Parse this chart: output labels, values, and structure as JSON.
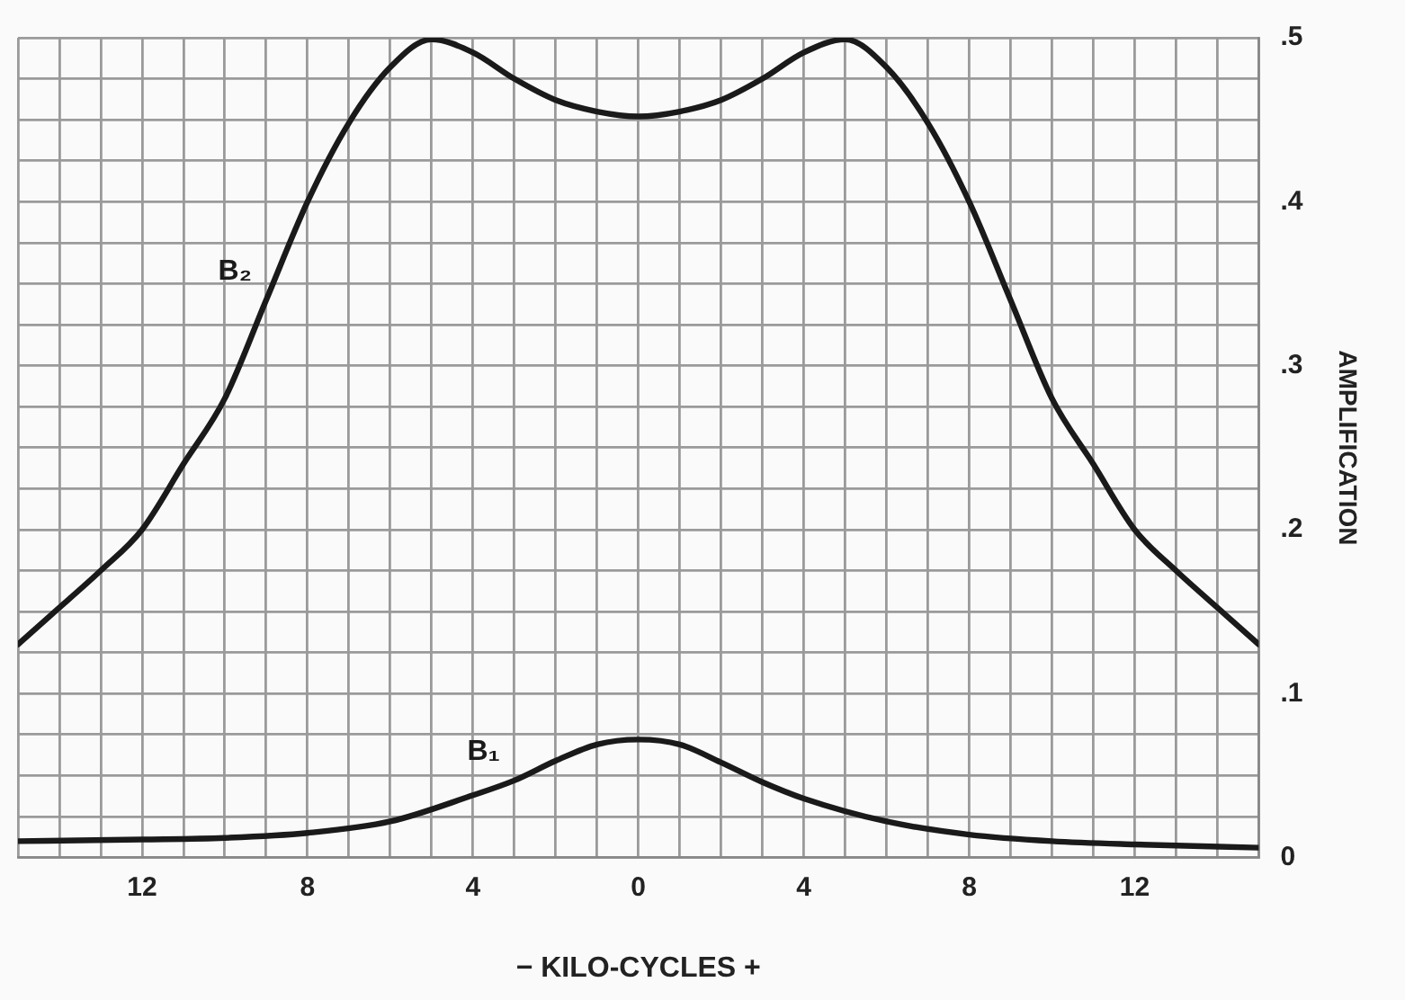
{
  "chart_data": {
    "type": "line",
    "xlabel": "− KILO-CYCLES +",
    "ylabel": "AMPLIFICATION",
    "xlim": [
      -15,
      15
    ],
    "ylim": [
      0,
      0.5
    ],
    "xticks": [
      {
        "value": -15,
        "label": null
      },
      {
        "value": -14,
        "label": null
      },
      {
        "value": -13,
        "label": null
      },
      {
        "value": -12,
        "label": "12"
      },
      {
        "value": -11,
        "label": null
      },
      {
        "value": -10,
        "label": null
      },
      {
        "value": -9,
        "label": null
      },
      {
        "value": -8,
        "label": "8"
      },
      {
        "value": -7,
        "label": null
      },
      {
        "value": -6,
        "label": null
      },
      {
        "value": -5,
        "label": null
      },
      {
        "value": -4,
        "label": "4"
      },
      {
        "value": -3,
        "label": null
      },
      {
        "value": -2,
        "label": null
      },
      {
        "value": -1,
        "label": null
      },
      0,
      {
        "value": 1,
        "label": null
      },
      {
        "value": 2,
        "label": null
      },
      {
        "value": 3,
        "label": null
      },
      {
        "value": 4,
        "label": "4"
      },
      {
        "value": 5,
        "label": null
      },
      {
        "value": 6,
        "label": null
      },
      {
        "value": 7,
        "label": null
      },
      {
        "value": 8,
        "label": "8"
      },
      {
        "value": 9,
        "label": null
      },
      {
        "value": 10,
        "label": null
      },
      {
        "value": 11,
        "label": null
      },
      {
        "value": 12,
        "label": "12"
      },
      {
        "value": 13,
        "label": null
      },
      {
        "value": 14,
        "label": null
      },
      {
        "value": 15,
        "label": null
      }
    ],
    "yticks": [
      0,
      {
        "value": 0.025,
        "label": null
      },
      {
        "value": 0.05,
        "label": null
      },
      {
        "value": 0.075,
        "label": null
      },
      {
        "value": 0.1,
        "label": ".1"
      },
      {
        "value": 0.125,
        "label": null
      },
      {
        "value": 0.15,
        "label": null
      },
      {
        "value": 0.175,
        "label": null
      },
      {
        "value": 0.2,
        "label": ".2"
      },
      {
        "value": 0.225,
        "label": null
      },
      {
        "value": 0.25,
        "label": null
      },
      {
        "value": 0.275,
        "label": null
      },
      {
        "value": 0.3,
        "label": ".3"
      },
      {
        "value": 0.325,
        "label": null
      },
      {
        "value": 0.35,
        "label": null
      },
      {
        "value": 0.375,
        "label": null
      },
      {
        "value": 0.4,
        "label": ".4"
      },
      {
        "value": 0.425,
        "label": null
      },
      {
        "value": 0.45,
        "label": null
      },
      {
        "value": 0.475,
        "label": null
      },
      {
        "value": 0.5,
        "label": ".5"
      }
    ],
    "grid": true,
    "legend": false,
    "marker": "none",
    "line_style": "solid",
    "series": [
      {
        "name": "B₂",
        "color": "#1a1a1a",
        "x": [
          -15,
          -14.2,
          -13,
          -12,
          -11,
          -10,
          -9,
          -8,
          -7,
          -6,
          -5,
          -4,
          -3,
          -2,
          -1,
          0,
          1,
          2,
          3,
          4,
          5,
          6,
          7,
          8,
          9,
          10,
          11,
          12,
          13,
          14.2,
          15
        ],
        "values": [
          0.13,
          0.148,
          0.175,
          0.2,
          0.24,
          0.28,
          0.34,
          0.4,
          0.448,
          0.482,
          0.499,
          0.491,
          0.475,
          0.462,
          0.455,
          0.452,
          0.455,
          0.462,
          0.475,
          0.491,
          0.499,
          0.482,
          0.448,
          0.4,
          0.34,
          0.28,
          0.24,
          0.2,
          0.175,
          0.148,
          0.13
        ]
      },
      {
        "name": "B₁",
        "color": "#1a1a1a",
        "x": [
          -15,
          -12,
          -10,
          -8,
          -6,
          -4,
          -3,
          -2,
          -1,
          0,
          1,
          2,
          3,
          4,
          6,
          8,
          10,
          12,
          15
        ],
        "values": [
          0.01,
          0.011,
          0.012,
          0.015,
          0.022,
          0.038,
          0.047,
          0.059,
          0.069,
          0.072,
          0.069,
          0.058,
          0.046,
          0.036,
          0.022,
          0.014,
          0.01,
          0.008,
          0.006
        ]
      }
    ]
  }
}
